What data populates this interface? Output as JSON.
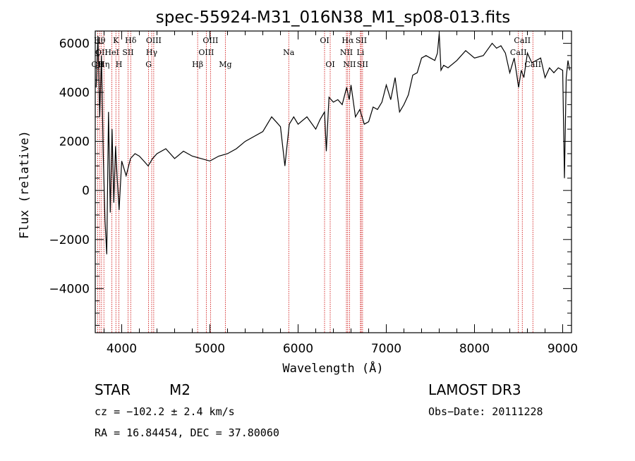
{
  "chart_data": {
    "type": "line",
    "title": "spec-55924-M31_016N38_M1_sp08-013.fits",
    "xlabel": "Wavelength (Å)",
    "ylabel": "Flux (relative)",
    "xlim": [
      3700,
      9100
    ],
    "ylim": [
      -5800,
      6500
    ],
    "xticks": [
      {
        "value": 4000,
        "label": "4000"
      },
      {
        "value": 5000,
        "label": "5000"
      },
      {
        "value": 6000,
        "label": "6000"
      },
      {
        "value": 7000,
        "label": "7000"
      },
      {
        "value": 8000,
        "label": "8000"
      },
      {
        "value": 9000,
        "label": "9000"
      }
    ],
    "yticks": [
      {
        "value": -4000,
        "label": "−4000"
      },
      {
        "value": -2000,
        "label": "−2000"
      },
      {
        "value": 0,
        "label": "0"
      },
      {
        "value": 2000,
        "label": "2000"
      },
      {
        "value": 4000,
        "label": "4000"
      },
      {
        "value": 6000,
        "label": "6000"
      }
    ],
    "series": [
      {
        "name": "spectrum",
        "x": [
          3710,
          3730,
          3750,
          3770,
          3790,
          3810,
          3830,
          3850,
          3870,
          3890,
          3910,
          3930,
          3950,
          3970,
          4000,
          4050,
          4100,
          4150,
          4200,
          4250,
          4300,
          4350,
          4400,
          4500,
          4600,
          4700,
          4800,
          4900,
          5000,
          5100,
          5200,
          5300,
          5400,
          5500,
          5600,
          5700,
          5750,
          5800,
          5850,
          5900,
          5950,
          6000,
          6100,
          6200,
          6250,
          6300,
          6320,
          6350,
          6400,
          6450,
          6500,
          6550,
          6580,
          6600,
          6650,
          6700,
          6750,
          6800,
          6850,
          6900,
          6950,
          7000,
          7050,
          7100,
          7150,
          7200,
          7250,
          7300,
          7350,
          7400,
          7450,
          7500,
          7550,
          7580,
          7600,
          7620,
          7650,
          7700,
          7800,
          7900,
          8000,
          8100,
          8200,
          8250,
          8300,
          8350,
          8400,
          8450,
          8480,
          8500,
          8530,
          8560,
          8600,
          8650,
          8700,
          8750,
          8800,
          8850,
          8900,
          8950,
          9000,
          9020,
          9040,
          9060,
          9080
        ],
        "y": [
          4200,
          6300,
          3000,
          5500,
          1500,
          -1200,
          -2600,
          3200,
          -900,
          2500,
          -500,
          1800,
          400,
          -800,
          1200,
          600,
          1300,
          1500,
          1400,
          1200,
          1000,
          1300,
          1500,
          1700,
          1300,
          1600,
          1400,
          1300,
          1200,
          1400,
          1500,
          1700,
          2000,
          2200,
          2400,
          3000,
          2800,
          2600,
          1000,
          2700,
          3000,
          2700,
          3000,
          2500,
          2900,
          3200,
          1600,
          3800,
          3600,
          3700,
          3500,
          4200,
          3700,
          4300,
          3000,
          3300,
          2700,
          2800,
          3400,
          3300,
          3600,
          4300,
          3700,
          4600,
          3200,
          3500,
          3900,
          4700,
          4800,
          5400,
          5500,
          5400,
          5300,
          5600,
          6400,
          4900,
          5100,
          5000,
          5300,
          5700,
          5400,
          5500,
          6000,
          5800,
          5900,
          5600,
          4800,
          5400,
          4700,
          4200,
          4900,
          4600,
          5600,
          5200,
          5300,
          5400,
          4600,
          5000,
          4800,
          5000,
          4900,
          500,
          4600,
          5300,
          4900
        ]
      }
    ],
    "emission_lines": [
      {
        "wavelength": 3727,
        "label": "OII",
        "row": 3
      },
      {
        "wavelength": 3750,
        "label": "Hθ",
        "row": 1
      },
      {
        "wavelength": 3771,
        "label": "OII",
        "row": 2
      },
      {
        "wavelength": 3798,
        "label": "Hη",
        "row": 3
      },
      {
        "wavelength": 3889,
        "label": "HeI",
        "row": 2
      },
      {
        "wavelength": 3934,
        "label": "K",
        "row": 1
      },
      {
        "wavelength": 3968,
        "label": "H",
        "row": 3
      },
      {
        "wavelength": 4072,
        "label": "SII",
        "row": 2
      },
      {
        "wavelength": 4102,
        "label": "Hδ",
        "row": 1
      },
      {
        "wavelength": 4305,
        "label": "G",
        "row": 3
      },
      {
        "wavelength": 4340,
        "label": "Hγ",
        "row": 2
      },
      {
        "wavelength": 4363,
        "label": "OIII",
        "row": 1
      },
      {
        "wavelength": 4861,
        "label": "Hβ",
        "row": 3
      },
      {
        "wavelength": 4959,
        "label": "OIII",
        "row": 2
      },
      {
        "wavelength": 5007,
        "label": "OIII",
        "row": 1
      },
      {
        "wavelength": 5175,
        "label": "Mg",
        "row": 3
      },
      {
        "wavelength": 5894,
        "label": "Na",
        "row": 2
      },
      {
        "wavelength": 6300,
        "label": "OI",
        "row": 1
      },
      {
        "wavelength": 6364,
        "label": "OI",
        "row": 3
      },
      {
        "wavelength": 6548,
        "label": "NII",
        "row": 2
      },
      {
        "wavelength": 6563,
        "label": "Hα",
        "row": 1
      },
      {
        "wavelength": 6583,
        "label": "NII",
        "row": 3
      },
      {
        "wavelength": 6707,
        "label": "Li",
        "row": 2
      },
      {
        "wavelength": 6716,
        "label": "SII",
        "row": 1
      },
      {
        "wavelength": 6731,
        "label": "SII",
        "row": 3
      },
      {
        "wavelength": 8498,
        "label": "CaII",
        "row": 2
      },
      {
        "wavelength": 8542,
        "label": "CaII",
        "row": 1
      },
      {
        "wavelength": 8662,
        "label": "CaII",
        "row": 3
      }
    ]
  },
  "info": {
    "class": "STAR",
    "subclass": "M2",
    "survey": "LAMOST DR3",
    "cz": "cz = −102.2 ± 2.4 km/s",
    "obs_date": "Obs−Date: 20111228",
    "coords": "RA =  16.84454, DEC =  37.80060"
  },
  "colors": {
    "spectrum": "#000000",
    "marker": "#cc0000",
    "axis": "#000000"
  }
}
